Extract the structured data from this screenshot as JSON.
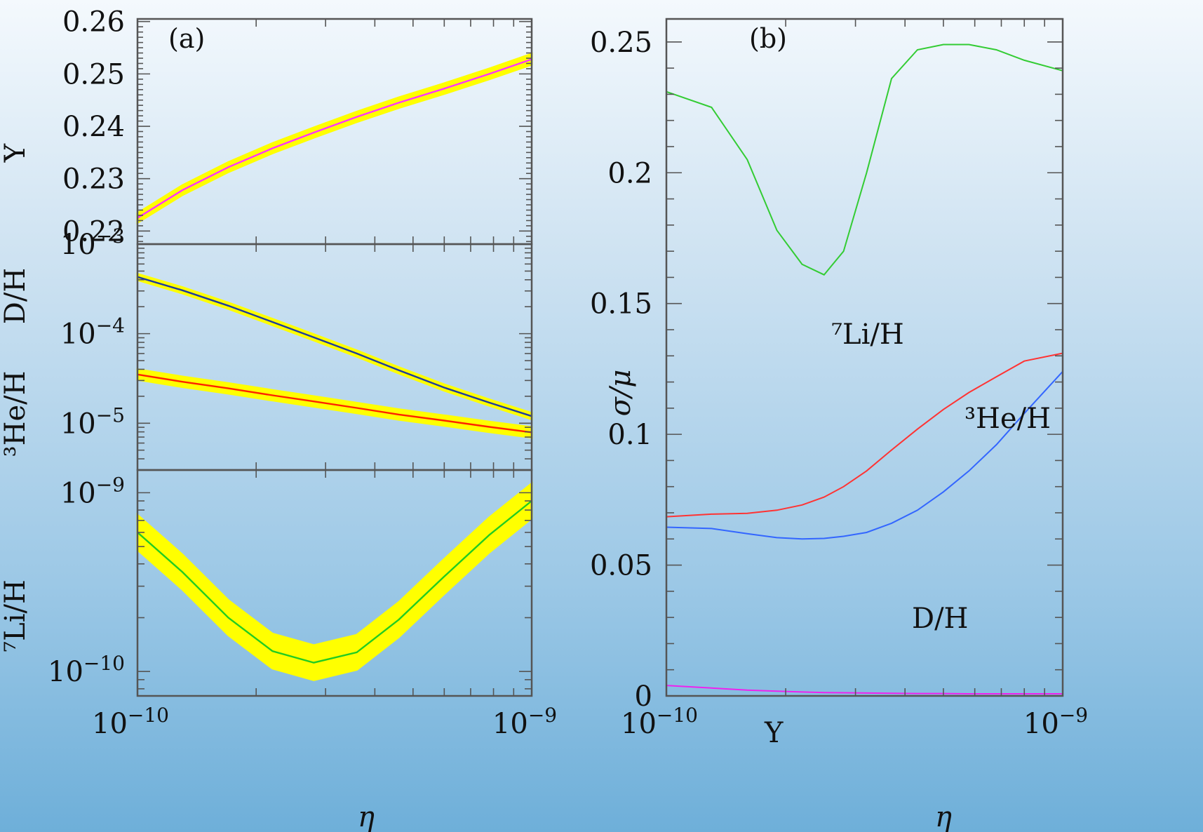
{
  "chart_data": [
    {
      "panel": "(a)",
      "type": "line",
      "xlabel": "η",
      "xscale": "log",
      "xlim": [
        1e-10,
        1e-09
      ],
      "x_ticks": [
        {
          "value": 1e-10,
          "base": "10",
          "exp": "−10"
        },
        {
          "value": 1e-09,
          "base": "10",
          "exp": "−9"
        }
      ],
      "x": [
        1e-10,
        1.3e-10,
        1.7e-10,
        2.2e-10,
        2.8e-10,
        3.6e-10,
        4.6e-10,
        6e-10,
        7.8e-10,
        1e-09
      ],
      "subpanels": [
        {
          "ylabel": "Y",
          "ylim": [
            0.2175,
            0.2605
          ],
          "y_ticks": [
            {
              "value": 0.22,
              "text": "0.22"
            },
            {
              "value": 0.23,
              "text": "0.23"
            },
            {
              "value": 0.24,
              "text": "0.24"
            },
            {
              "value": 0.25,
              "text": "0.25"
            },
            {
              "value": 0.26,
              "text": "0.26"
            }
          ],
          "series": [
            {
              "values": [
                0.2225,
                0.2278,
                0.2322,
                0.2358,
                0.2388,
                0.2418,
                0.2445,
                0.2472,
                0.25,
                0.2528
              ],
              "band_frac": 0.004,
              "line_color": "#ff33ff",
              "band_color": "#ffff00"
            }
          ]
        },
        {
          "ylabel_top": "D/H",
          "ylabel": "³He/H",
          "yscale": "log",
          "ylim": [
            3e-06,
            0.001
          ],
          "y_ticks": [
            {
              "value": 0.001,
              "base": "10",
              "exp": "−3"
            },
            {
              "value": 0.0001,
              "base": "10",
              "exp": "−4"
            },
            {
              "value": 1e-05,
              "base": "10",
              "exp": "−5"
            }
          ],
          "series": [
            {
              "values": [
                0.00043,
                0.000305,
                0.000205,
                0.000135,
                9.1e-05,
                6e-05,
                3.9e-05,
                2.5e-05,
                1.7e-05,
                1.2e-05
              ],
              "band_frac": 0.08,
              "line_color": "#1f3b9f",
              "band_color": "#ffff00"
            },
            {
              "values": [
                3.5e-05,
                2.9e-05,
                2.45e-05,
                2.05e-05,
                1.75e-05,
                1.48e-05,
                1.25e-05,
                1.07e-05,
                9.1e-06,
                7.9e-06
              ],
              "band_frac": 0.14,
              "line_color": "#ff2200",
              "band_color": "#ffff00"
            }
          ]
        },
        {
          "ylabel": "⁷Li/H",
          "yscale": "log",
          "ylim": [
            7.3e-11,
            1.34e-09
          ],
          "y_ticks": [
            {
              "value": 1e-09,
              "base": "10",
              "exp": "−9"
            },
            {
              "value": 1e-10,
              "base": "10",
              "exp": "−10"
            }
          ],
          "series": [
            {
              "values": [
                6e-10,
                3.6e-10,
                2e-10,
                1.3e-10,
                1.12e-10,
                1.28e-10,
                1.95e-10,
                3.4e-10,
                5.8e-10,
                9e-10
              ],
              "band_frac": 0.25,
              "line_color": "#22cc22",
              "band_color": "#ffff00"
            }
          ]
        }
      ]
    },
    {
      "panel": "(b)",
      "type": "line",
      "xlabel": "η",
      "xscale": "log",
      "xlim": [
        1e-10,
        1e-09
      ],
      "x_ticks": [
        {
          "value": 1e-10,
          "base": "10",
          "exp": "−10"
        },
        {
          "value": 1e-09,
          "base": "10",
          "exp": "−9"
        }
      ],
      "ylabel": "σ/μ",
      "ylim": [
        0,
        0.2588
      ],
      "y_ticks": [
        {
          "value": 0,
          "text": "0"
        },
        {
          "value": 0.05,
          "text": "0.05"
        },
        {
          "value": 0.1,
          "text": "0.1"
        },
        {
          "value": 0.15,
          "text": "0.15"
        },
        {
          "value": 0.2,
          "text": "0.2"
        },
        {
          "value": 0.25,
          "text": "0.25"
        }
      ],
      "x": [
        1e-10,
        1.3e-10,
        1.6e-10,
        1.9e-10,
        2.2e-10,
        2.5e-10,
        2.8e-10,
        3.2e-10,
        3.7e-10,
        4.3e-10,
        5e-10,
        5.8e-10,
        6.8e-10,
        8e-10,
        1e-09
      ],
      "series": [
        {
          "label": "⁷Li/H",
          "color": "#33cc33",
          "values": [
            0.231,
            0.225,
            0.205,
            0.178,
            0.165,
            0.161,
            0.17,
            0.2,
            0.236,
            0.247,
            0.249,
            0.249,
            0.247,
            0.243,
            0.239
          ]
        },
        {
          "label": "³He/H",
          "color": "#ff3333",
          "values": [
            0.0685,
            0.0695,
            0.0698,
            0.071,
            0.073,
            0.076,
            0.08,
            0.086,
            0.094,
            0.102,
            0.1095,
            0.116,
            0.122,
            0.128,
            0.131
          ]
        },
        {
          "label": "D/H",
          "color": "#3366ff",
          "values": [
            0.0645,
            0.064,
            0.062,
            0.0605,
            0.06,
            0.0602,
            0.061,
            0.0625,
            0.066,
            0.071,
            0.078,
            0.086,
            0.096,
            0.108,
            0.124
          ]
        },
        {
          "label": "Y",
          "color": "#ee22ee",
          "values": [
            0.004,
            0.003,
            0.0022,
            0.0018,
            0.0015,
            0.0013,
            0.0012,
            0.0011,
            0.001,
            0.0009,
            0.0009,
            0.0008,
            0.0008,
            0.0008,
            0.0008
          ]
        }
      ],
      "annotations": [
        "⁷Li/H",
        "³He/H",
        "D/H",
        "Y"
      ]
    }
  ]
}
